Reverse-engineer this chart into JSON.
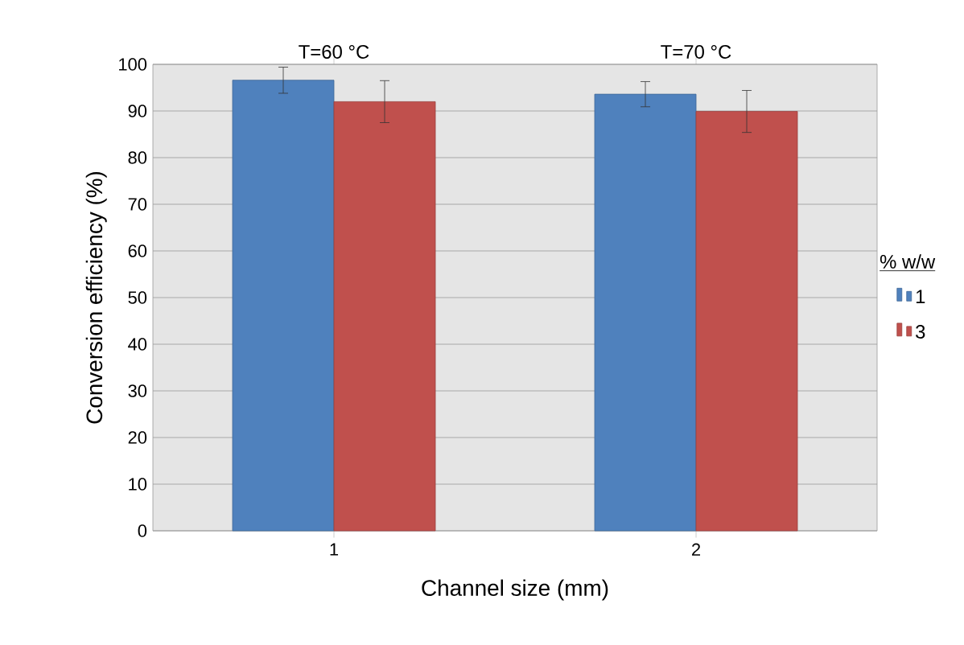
{
  "chart_data": {
    "type": "bar",
    "xlabel": "Channel size (mm)",
    "ylabel": "Conversion efficiency (%)",
    "legend_title": "% w/w",
    "categories": [
      "1",
      "2"
    ],
    "series": [
      {
        "name": "1",
        "color": "#4f81bd",
        "values": [
          96.6,
          93.6
        ],
        "errors": [
          2.8,
          2.7
        ]
      },
      {
        "name": "3",
        "color": "#c0504d",
        "values": [
          92.0,
          89.9
        ],
        "errors": [
          4.5,
          4.5
        ]
      }
    ],
    "annotations": [
      "T=60 °C",
      "T=70 °C"
    ],
    "ylim": [
      0,
      100
    ],
    "yticks": [
      0,
      10,
      20,
      30,
      40,
      50,
      60,
      70,
      80,
      90,
      100
    ],
    "grid": "y",
    "legend": "right"
  }
}
